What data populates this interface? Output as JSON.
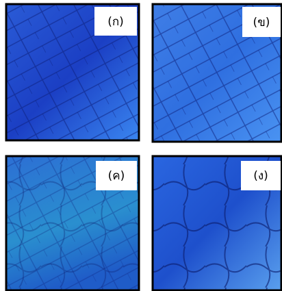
{
  "panels": [
    {
      "label": "(ก)"
    },
    {
      "label": "(ข)"
    },
    {
      "label": "(ค)"
    },
    {
      "label": "(ง)"
    }
  ]
}
